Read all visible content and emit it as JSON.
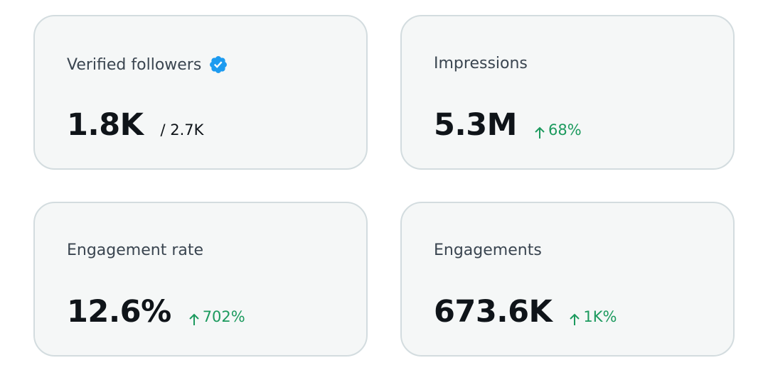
{
  "cards": [
    {
      "label": "Verified followers",
      "value": "1.8K",
      "total": "/ 2.7K"
    },
    {
      "label": "Impressions",
      "value": "5.3M",
      "change": "68%"
    },
    {
      "label": "Engagement rate",
      "value": "12.6%",
      "change": "702%"
    },
    {
      "label": "Engagements",
      "value": "673.6K",
      "change": "1K%"
    }
  ]
}
